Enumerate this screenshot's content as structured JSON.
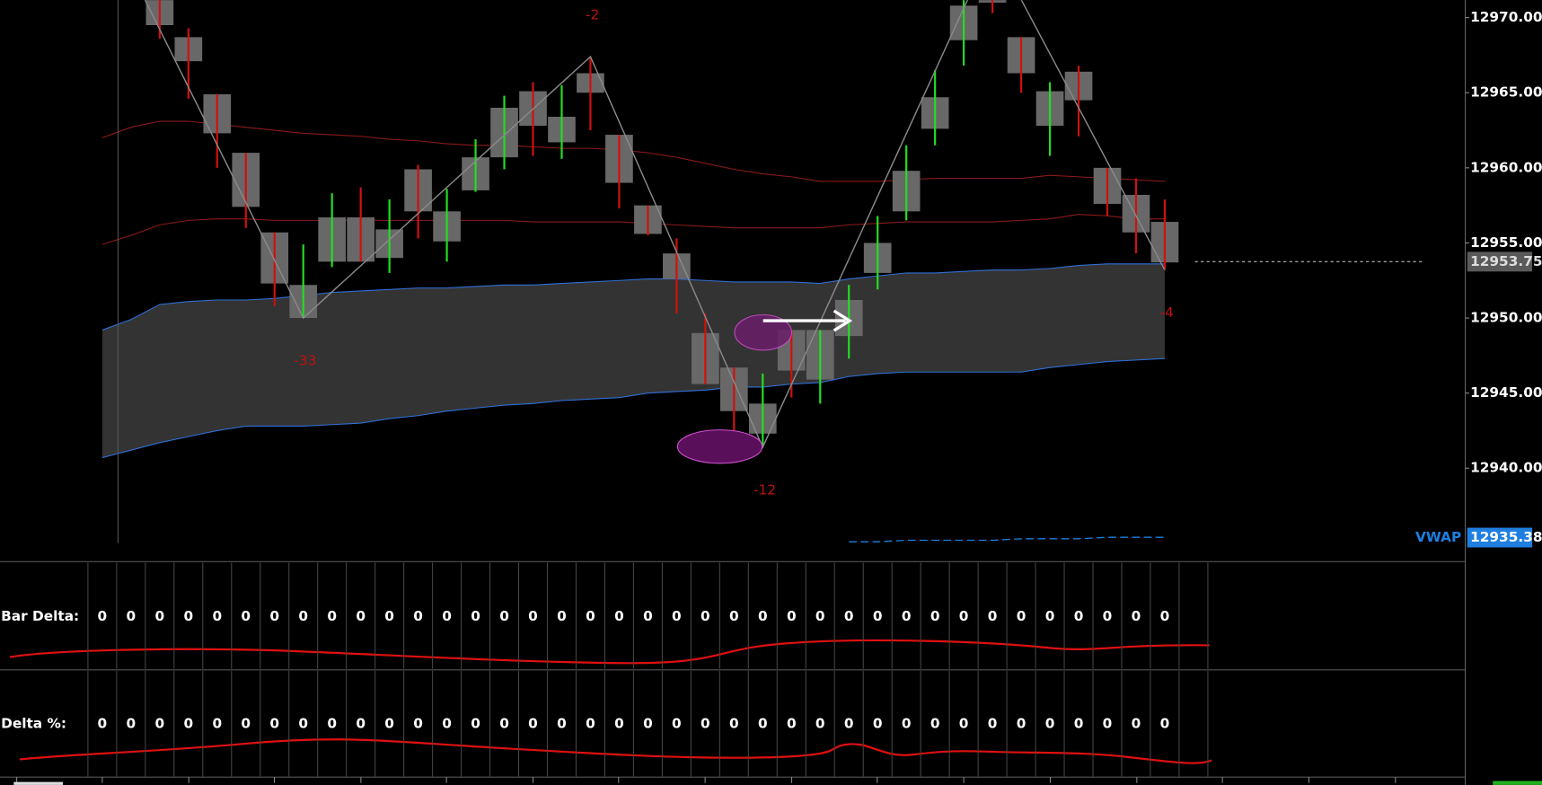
{
  "chart_data": {
    "type": "candlestick",
    "ylim": [
      12933.84,
      12971.17
    ],
    "yticks": [
      {
        "value": 12940,
        "label": "12940.00"
      },
      {
        "value": 12945,
        "label": "12945.00"
      },
      {
        "value": 12950,
        "label": "12950.00"
      },
      {
        "value": 12955,
        "label": "12955.00"
      },
      {
        "value": 12960,
        "label": "12960.00"
      },
      {
        "value": 12965,
        "label": "12965.00"
      },
      {
        "value": 12970,
        "label": "12970.00"
      }
    ],
    "up_color": "#22dd22",
    "down_color": "#d01010",
    "body_color": "#686868",
    "open": [
      null,
      null,
      12971.2,
      12968.7,
      12964.9,
      12961.0,
      12955.7,
      12950.0,
      12953.75,
      12956.7,
      12954.0,
      12959.9,
      12955.1,
      12958.5,
      12960.7,
      12965.1,
      12961.7,
      12966.3,
      12962.2,
      12957.5,
      12954.3,
      12949.0,
      12946.7,
      12942.3,
      12949.2,
      12945.9,
      12948.8,
      12953.0,
      12957.1,
      12962.6,
      12968.5,
      12973.5,
      12968.7,
      12962.8,
      12966.4,
      12960.0,
      12958.2,
      12956.4
    ],
    "high": [
      null,
      null,
      12971.5,
      12969.3,
      12964.9,
      12961.0,
      12955.7,
      12954.9,
      12958.3,
      12958.7,
      12957.9,
      12960.2,
      12958.6,
      12961.9,
      12964.8,
      12965.7,
      12965.5,
      12967.4,
      12962.2,
      12957.5,
      12955.3,
      12950.3,
      12946.7,
      12946.3,
      12949.2,
      12949.2,
      12952.2,
      12956.8,
      12961.5,
      12966.5,
      12971.2,
      12974.8,
      12968.7,
      12965.7,
      12966.8,
      12960.0,
      12959.3,
      12957.9
    ],
    "low": [
      null,
      null,
      12968.6,
      12964.6,
      12960.0,
      12956.0,
      12950.8,
      12950.0,
      12953.4,
      12953.75,
      12953.0,
      12955.3,
      12953.75,
      12958.4,
      12959.9,
      12960.8,
      12960.6,
      12962.5,
      12957.3,
      12955.5,
      12950.3,
      12945.6,
      12941.8,
      12941.4,
      12944.7,
      12944.3,
      12947.3,
      12951.9,
      12956.5,
      12961.5,
      12966.8,
      12970.3,
      12965.0,
      12960.8,
      12962.1,
      12956.8,
      12954.3,
      12953.2
    ],
    "close": [
      null,
      null,
      12969.5,
      12967.1,
      12962.3,
      12957.4,
      12952.3,
      12952.2,
      12956.7,
      12953.75,
      12955.9,
      12957.1,
      12957.1,
      12960.7,
      12964.0,
      12962.8,
      12963.4,
      12965.0,
      12959.0,
      12955.6,
      12952.6,
      12945.6,
      12943.8,
      12944.3,
      12946.5,
      12949.2,
      12951.2,
      12955.0,
      12959.8,
      12964.7,
      12970.8,
      12971.0,
      12966.3,
      12965.1,
      12964.5,
      12957.6,
      12955.7,
      12953.7
    ],
    "bands": [
      {
        "color": "#8b1a1a",
        "values": [
          12962.0,
          12962.7,
          12963.1,
          12963.1,
          12962.9,
          12962.7,
          12962.5,
          12962.3,
          12962.2,
          12962.1,
          12961.9,
          12961.8,
          12961.6,
          12961.5,
          12961.5,
          12961.4,
          12961.3,
          12961.3,
          12961.2,
          12961.0,
          12960.7,
          12960.3,
          12959.9,
          12959.6,
          12959.4,
          12959.1,
          12959.1,
          12959.1,
          12959.2,
          12959.3,
          12959.3,
          12959.3,
          12959.3,
          12959.5,
          12959.4,
          12959.3,
          12959.2,
          12959.1
        ]
      },
      {
        "color": "#8b1a1a",
        "values": [
          12954.9,
          12955.5,
          12956.2,
          12956.5,
          12956.6,
          12956.6,
          12956.5,
          12956.5,
          12956.5,
          12956.5,
          12956.5,
          12956.5,
          12956.5,
          12956.5,
          12956.5,
          12956.4,
          12956.4,
          12956.4,
          12956.4,
          12956.3,
          12956.2,
          12956.1,
          12956.0,
          12956.0,
          12956.0,
          12956.0,
          12956.2,
          12956.3,
          12956.4,
          12956.4,
          12956.4,
          12956.4,
          12956.5,
          12956.6,
          12956.9,
          12956.8,
          12956.6,
          12956.6
        ]
      },
      {
        "color": "#2f6fd6",
        "values": [
          12949.2,
          12949.9,
          12950.9,
          12951.1,
          12951.2,
          12951.2,
          12951.3,
          12951.5,
          12951.7,
          12951.8,
          12951.9,
          12952.0,
          12952.0,
          12952.1,
          12952.2,
          12952.2,
          12952.3,
          12952.4,
          12952.5,
          12952.6,
          12952.6,
          12952.5,
          12952.4,
          12952.4,
          12952.4,
          12952.3,
          12952.6,
          12952.8,
          12953.0,
          12953.0,
          12953.1,
          12953.2,
          12953.2,
          12953.3,
          12953.5,
          12953.6,
          12953.6,
          12953.6
        ]
      },
      {
        "color": "#2f6fd6",
        "values": [
          12940.7,
          12941.2,
          12941.7,
          12942.1,
          12942.5,
          12942.8,
          12942.8,
          12942.8,
          12942.9,
          12943.0,
          12943.3,
          12943.5,
          12943.8,
          12944.0,
          12944.2,
          12944.3,
          12944.5,
          12944.6,
          12944.7,
          12945.0,
          12945.1,
          12945.2,
          12945.4,
          12945.4,
          12945.6,
          12945.7,
          12946.1,
          12946.3,
          12946.4,
          12946.4,
          12946.4,
          12946.4,
          12946.4,
          12946.7,
          12946.9,
          12947.1,
          12947.2,
          12947.3
        ]
      }
    ],
    "band_fill": "#333333",
    "zigzag": {
      "color": "#8a8a8a",
      "bars": [
        0,
        7,
        17,
        23,
        31,
        37
      ],
      "values": [
        12976.9,
        12950.0,
        12967.4,
        12941.4,
        12974.8,
        12953.2
      ]
    },
    "annotations": [
      {
        "bar": 7,
        "value": -33,
        "position": "below"
      },
      {
        "bar": 17,
        "value": -2,
        "position": "above"
      },
      {
        "bar": 23,
        "value": -12,
        "position": "below"
      },
      {
        "bar": 37,
        "value": -4,
        "position": "below"
      }
    ],
    "annotation_color": "#c01010",
    "last_price": {
      "value": 12953.75,
      "label": "12953.75"
    },
    "vwap": {
      "name": "VWAP",
      "value": 12935.38,
      "label": "12935.38",
      "color": "#1e7fe0"
    },
    "vwap_line": [
      null,
      null,
      null,
      null,
      null,
      null,
      null,
      null,
      null,
      null,
      null,
      null,
      null,
      null,
      null,
      null,
      null,
      null,
      null,
      null,
      null,
      null,
      null,
      null,
      null,
      null,
      12935.1,
      12935.1,
      12935.2,
      12935.2,
      12935.2,
      12935.2,
      12935.3,
      12935.3,
      12935.3,
      12935.4,
      12935.4,
      12935.4
    ],
    "lower_panels": [
      {
        "label": "Bar Delta:",
        "values": [
          0,
          0,
          0,
          0,
          0,
          0,
          0,
          0,
          0,
          0,
          0,
          0,
          0,
          0,
          0,
          0,
          0,
          0,
          0,
          0,
          0,
          0,
          0,
          0,
          0,
          0,
          0,
          0,
          0,
          0,
          0,
          0,
          0,
          0,
          0,
          0,
          0,
          0
        ]
      },
      {
        "label": "Delta %:",
        "values": [
          0,
          0,
          0,
          0,
          0,
          0,
          0,
          0,
          0,
          0,
          0,
          0,
          0,
          0,
          0,
          0,
          0,
          0,
          0,
          0,
          0,
          0,
          0,
          0,
          0,
          0,
          0,
          0,
          0,
          0,
          0,
          0,
          0,
          0,
          0,
          0,
          0,
          0
        ]
      }
    ]
  }
}
